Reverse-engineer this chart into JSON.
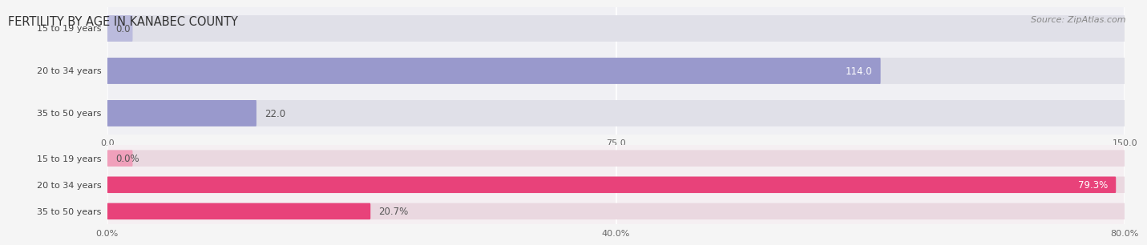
{
  "title": "FERTILITY BY AGE IN KANABEC COUNTY",
  "source": "Source: ZipAtlas.com",
  "top_bars": {
    "categories": [
      "15 to 19 years",
      "20 to 34 years",
      "35 to 50 years"
    ],
    "values": [
      0.0,
      114.0,
      22.0
    ],
    "xlim": [
      0,
      150
    ],
    "xticks": [
      0.0,
      75.0,
      150.0
    ],
    "bar_color_main": "#9999cc",
    "bar_color_zero": "#bbbbdd",
    "bar_bg_color": "#e0e0e8",
    "value_color_inside": "#ffffff",
    "value_color_outside": "#555555"
  },
  "bottom_bars": {
    "categories": [
      "15 to 19 years",
      "20 to 34 years",
      "35 to 50 years"
    ],
    "values": [
      0.0,
      79.3,
      20.7
    ],
    "xlim": [
      0,
      80
    ],
    "xticks": [
      0.0,
      40.0,
      80.0
    ],
    "xtick_labels": [
      "0.0%",
      "40.0%",
      "80.0%"
    ],
    "bar_color_main": "#e8427a",
    "bar_color_zero": "#f0a0bb",
    "bar_bg_color": "#ead8e0",
    "value_color_inside": "#ffffff",
    "value_color_outside": "#555555"
  },
  "fig_bg_color": "#f5f5f5",
  "section_bg_top": "#f0f0f4",
  "section_bg_bot": "#f5eff2",
  "grid_color": "#ffffff",
  "label_color": "#444444",
  "title_color": "#333333",
  "source_color": "#888888"
}
